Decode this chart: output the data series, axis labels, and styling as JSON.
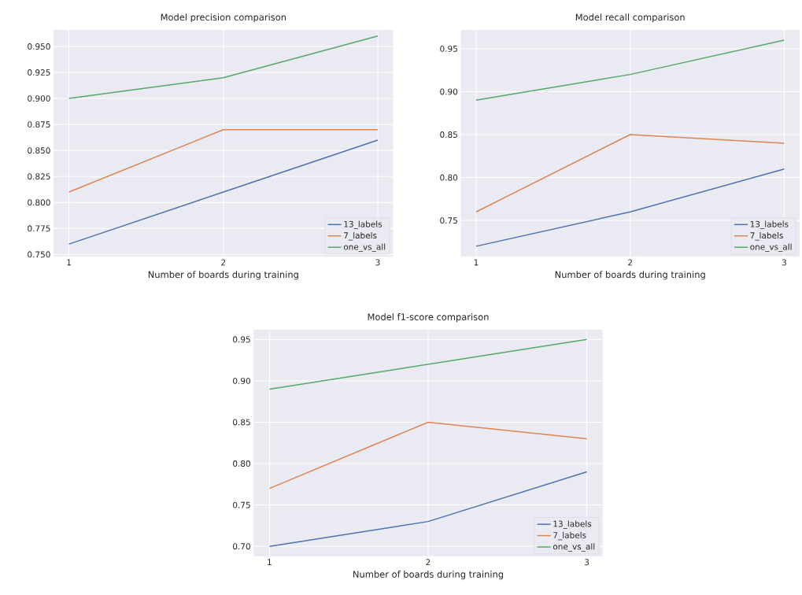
{
  "chart_data": [
    {
      "type": "line",
      "title": "Model precision comparison",
      "xlabel": "Number of boards during training",
      "x": [
        1,
        2,
        3
      ],
      "series": [
        {
          "name": "13_labels",
          "color": "#4c72b0",
          "values": [
            0.76,
            0.81,
            0.86
          ]
        },
        {
          "name": "7_labels",
          "color": "#dd8452",
          "values": [
            0.81,
            0.87,
            0.87
          ]
        },
        {
          "name": "one_vs_all",
          "color": "#55a868",
          "values": [
            0.9,
            0.92,
            0.96
          ]
        }
      ],
      "xlim": [
        0.9,
        3.1
      ],
      "ylim": [
        0.748,
        0.966
      ],
      "xticks": [
        1,
        2,
        3
      ],
      "yticks": [
        {
          "value": 0.75,
          "label": "0.750"
        },
        {
          "value": 0.775,
          "label": "0.775"
        },
        {
          "value": 0.8,
          "label": "0.800"
        },
        {
          "value": 0.825,
          "label": "0.825"
        },
        {
          "value": 0.85,
          "label": "0.850"
        },
        {
          "value": 0.875,
          "label": "0.875"
        },
        {
          "value": 0.9,
          "label": "0.900"
        },
        {
          "value": 0.925,
          "label": "0.925"
        },
        {
          "value": 0.95,
          "label": "0.950"
        }
      ],
      "grid": true,
      "legend": "bottom right"
    },
    {
      "type": "line",
      "title": "Model recall comparison",
      "xlabel": "Number of boards during training",
      "x": [
        1,
        2,
        3
      ],
      "series": [
        {
          "name": "13_labels",
          "color": "#4c72b0",
          "values": [
            0.72,
            0.76,
            0.81
          ]
        },
        {
          "name": "7_labels",
          "color": "#dd8452",
          "values": [
            0.76,
            0.85,
            0.84
          ]
        },
        {
          "name": "one_vs_all",
          "color": "#55a868",
          "values": [
            0.89,
            0.92,
            0.96
          ]
        }
      ],
      "xlim": [
        0.9,
        3.1
      ],
      "ylim": [
        0.708,
        0.972
      ],
      "xticks": [
        1,
        2,
        3
      ],
      "yticks": [
        {
          "value": 0.75,
          "label": "0.75"
        },
        {
          "value": 0.8,
          "label": "0.80"
        },
        {
          "value": 0.85,
          "label": "0.85"
        },
        {
          "value": 0.9,
          "label": "0.90"
        },
        {
          "value": 0.95,
          "label": "0.95"
        }
      ],
      "grid": true,
      "legend": "bottom right"
    },
    {
      "type": "line",
      "title": "Model f1-score comparison",
      "xlabel": "Number of boards during training",
      "x": [
        1,
        2,
        3
      ],
      "series": [
        {
          "name": "13_labels",
          "color": "#4c72b0",
          "values": [
            0.7,
            0.73,
            0.79
          ]
        },
        {
          "name": "7_labels",
          "color": "#dd8452",
          "values": [
            0.77,
            0.85,
            0.83
          ]
        },
        {
          "name": "one_vs_all",
          "color": "#55a868",
          "values": [
            0.89,
            0.92,
            0.95
          ]
        }
      ],
      "xlim": [
        0.9,
        3.1
      ],
      "ylim": [
        0.688,
        0.962
      ],
      "xticks": [
        1,
        2,
        3
      ],
      "yticks": [
        {
          "value": 0.7,
          "label": "0.70"
        },
        {
          "value": 0.75,
          "label": "0.75"
        },
        {
          "value": 0.8,
          "label": "0.80"
        },
        {
          "value": 0.85,
          "label": "0.85"
        },
        {
          "value": 0.9,
          "label": "0.90"
        },
        {
          "value": 0.95,
          "label": "0.95"
        }
      ],
      "grid": true,
      "legend": "bottom right"
    }
  ]
}
